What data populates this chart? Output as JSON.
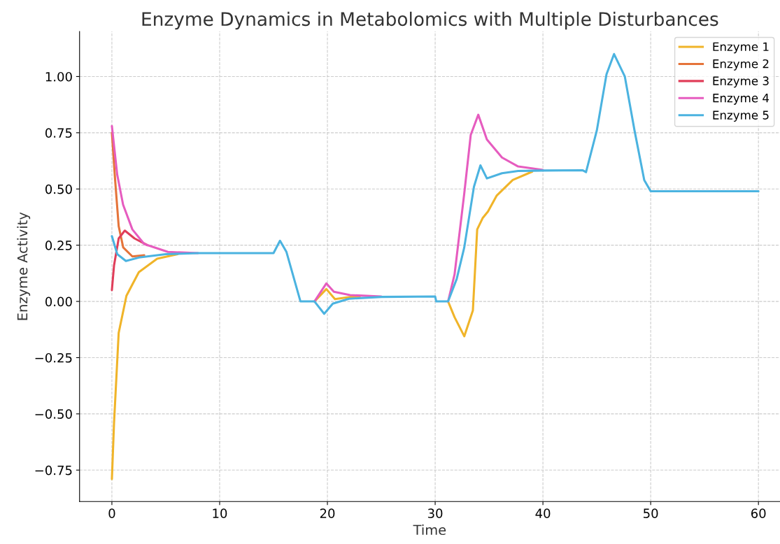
{
  "chart_data": {
    "type": "line",
    "title": "Enzyme Dynamics in Metabolomics with Multiple Disturbances",
    "xlabel": "Time",
    "ylabel": "Enzyme Activity",
    "xlim": [
      -3,
      62
    ],
    "ylim": [
      -0.89,
      1.2
    ],
    "xticks": [
      0,
      10,
      20,
      30,
      40,
      50,
      60
    ],
    "yticks": [
      {
        "value": -0.75,
        "label": "−0.75"
      },
      {
        "value": -0.5,
        "label": "−0.50"
      },
      {
        "value": -0.25,
        "label": "−0.25"
      },
      {
        "value": 0,
        "label": "0.00"
      },
      {
        "value": 0.25,
        "label": "0.25"
      },
      {
        "value": 0.5,
        "label": "0.50"
      },
      {
        "value": 0.75,
        "label": "0.75"
      },
      {
        "value": 1.0,
        "label": "1.00"
      }
    ],
    "grid": true,
    "legend": "top right",
    "line_style": "solid",
    "marker": "none",
    "series": [
      {
        "name": "Enzyme 1",
        "color": "#f0b429",
        "x": [
          0,
          0.2,
          0.63,
          1.35,
          2.5,
          4.2,
          6.1,
          8.5,
          18.8,
          19.9,
          20.7,
          22.1,
          23,
          23.5,
          31.2,
          31.8,
          32.7,
          33.5,
          33.9,
          34.4,
          34.9,
          35.7,
          37.2,
          39
        ],
        "values": [
          -0.79,
          -0.54,
          -0.14,
          0.025,
          0.13,
          0.19,
          0.21,
          null,
          0,
          0.055,
          0.01,
          0.02,
          0.022,
          null,
          0,
          -0.07,
          -0.155,
          -0.04,
          0.32,
          0.37,
          0.4,
          0.47,
          0.54,
          0.577
        ]
      },
      {
        "name": "Enzyme 2",
        "color": "#e5743a",
        "x": [
          0,
          0.3,
          0.63,
          1.05,
          1.9,
          3
        ],
        "values": [
          0.75,
          0.54,
          0.335,
          0.24,
          0.2,
          0.205
        ]
      },
      {
        "name": "Enzyme 3",
        "color": "#e03e5a",
        "x": [
          0,
          0.2,
          0.63,
          1.2,
          2.1,
          3.3
        ],
        "values": [
          0.05,
          0.16,
          0.28,
          0.315,
          0.28,
          0.25
        ]
      },
      {
        "name": "Enzyme 4",
        "color": "#e65cbf",
        "x": [
          0,
          0.49,
          1.04,
          1.9,
          3,
          5.2,
          8,
          8.5,
          18.8,
          19.9,
          20.6,
          22.1,
          25,
          25.5,
          31.2,
          31.8,
          32.7,
          33.3,
          34,
          34.8,
          36.2,
          37.7,
          40
        ],
        "values": [
          0.78,
          0.565,
          0.43,
          0.32,
          0.255,
          0.22,
          0.215,
          null,
          0,
          0.08,
          0.043,
          0.028,
          0.022,
          null,
          0,
          0.12,
          0.48,
          0.74,
          0.83,
          0.72,
          0.64,
          0.6,
          0.585
        ]
      },
      {
        "name": "Enzyme 5",
        "color": "#4bb3e0",
        "x": [
          0,
          0.5,
          1.3,
          2.5,
          5,
          8,
          15,
          15.6,
          16.2,
          17.5,
          18.8,
          19.7,
          20.5,
          22,
          25,
          30,
          30.1,
          31.2,
          32,
          32.7,
          33.6,
          34.2,
          34.8,
          36.2,
          37.7,
          40,
          43.7,
          44,
          45,
          45.9,
          46.6,
          47.6,
          48.5,
          49.4,
          50,
          55,
          60
        ],
        "values": [
          0.29,
          0.21,
          0.18,
          0.195,
          0.21,
          0.215,
          0.215,
          0.27,
          0.22,
          0,
          0,
          -0.055,
          -0.01,
          0.012,
          0.02,
          0.022,
          0,
          0,
          0.1,
          0.24,
          0.51,
          0.605,
          0.547,
          0.57,
          0.58,
          0.582,
          0.583,
          0.575,
          0.76,
          1.01,
          1.1,
          1.0,
          0.76,
          0.54,
          0.49,
          0.49,
          0.49
        ]
      }
    ]
  }
}
